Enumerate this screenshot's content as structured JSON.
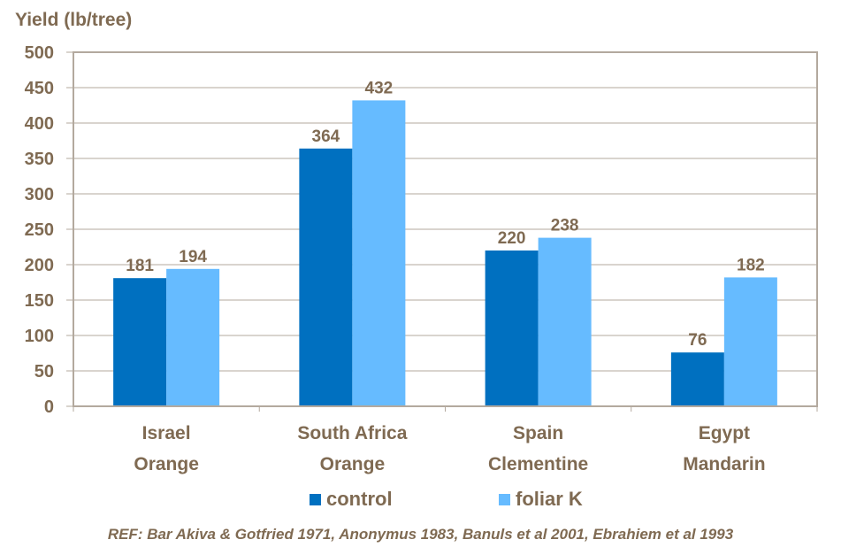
{
  "chart_data": {
    "type": "bar",
    "ylabel": "Yield (lb/tree)",
    "ylim": [
      0,
      500
    ],
    "yticks": [
      "0",
      "50",
      "100",
      "150",
      "200",
      "250",
      "300",
      "350",
      "400",
      "450",
      "500"
    ],
    "grid": true,
    "categories": [
      {
        "line1": "Israel",
        "line2": "Orange"
      },
      {
        "line1": "South Africa",
        "line2": "Orange"
      },
      {
        "line1": "Spain",
        "line2": "Clementine"
      },
      {
        "line1": "Egypt",
        "line2": "Mandarin"
      }
    ],
    "series": [
      {
        "name": "control",
        "color": "#0070c0",
        "values": [
          181,
          364,
          220,
          76
        ]
      },
      {
        "name": "foliar K",
        "color": "#66bbff",
        "values": [
          194,
          432,
          238,
          182
        ]
      }
    ],
    "legend_position": "bottom"
  },
  "reference": "REF: Bar Akiva & Gotfried 1971, Anonymus 1983, Banuls et al 2001, Ebrahiem et al 1993"
}
